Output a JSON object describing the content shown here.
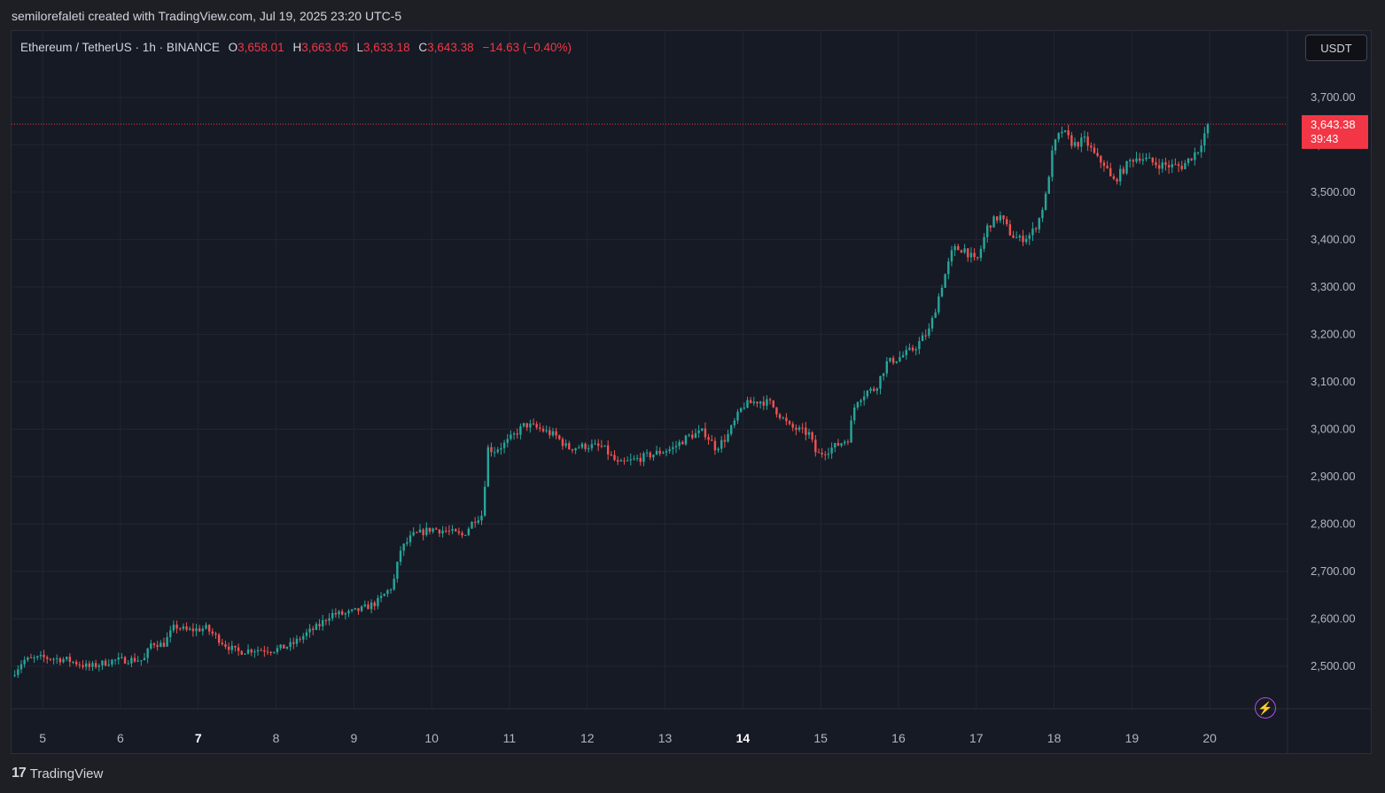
{
  "header": {
    "attribution": "semilorefaleti created with TradingView.com, Jul 19, 2025 23:20 UTC-5"
  },
  "legend": {
    "symbol": "Ethereum / TetherUS · 1h · BINANCE",
    "open_key": "O",
    "open": "3,658.01",
    "high_key": "H",
    "high": "3,663.05",
    "low_key": "L",
    "low": "3,633.18",
    "close_key": "C",
    "close": "3,643.38",
    "change": "−14.63 (−0.40%)"
  },
  "currency_button": {
    "label": "USDT"
  },
  "price_label": {
    "price": "3,643.38",
    "countdown": "39:43"
  },
  "footer": {
    "brand": "TradingView"
  },
  "colors": {
    "up": "#26a69a",
    "down": "#ef5350",
    "grid": "#232632",
    "background": "#161a25",
    "last_price": "#f23645"
  },
  "icons": {
    "logo": "tradingview-logo-icon",
    "alert": "lightning-icon"
  },
  "chart_data": {
    "type": "candlestick",
    "interval": "1h",
    "y_ticks": [
      "2,500.00",
      "2,600.00",
      "2,700.00",
      "2,800.00",
      "2,900.00",
      "3,000.00",
      "3,100.00",
      "3,200.00",
      "3,300.00",
      "3,400.00",
      "3,500.00",
      "3,600.00",
      "3,700.00"
    ],
    "y_tick_values": [
      2500,
      2600,
      2700,
      2800,
      2900,
      3000,
      3100,
      3200,
      3300,
      3400,
      3500,
      3600,
      3700
    ],
    "ylim": [
      2410,
      3840
    ],
    "x_ticks": [
      {
        "label": "5",
        "day": 5,
        "bold": false
      },
      {
        "label": "6",
        "day": 6,
        "bold": false
      },
      {
        "label": "7",
        "day": 7,
        "bold": true
      },
      {
        "label": "8",
        "day": 8,
        "bold": false
      },
      {
        "label": "9",
        "day": 9,
        "bold": false
      },
      {
        "label": "10",
        "day": 10,
        "bold": false
      },
      {
        "label": "11",
        "day": 11,
        "bold": false
      },
      {
        "label": "12",
        "day": 12,
        "bold": false
      },
      {
        "label": "13",
        "day": 13,
        "bold": false
      },
      {
        "label": "14",
        "day": 14,
        "bold": true
      },
      {
        "label": "15",
        "day": 15,
        "bold": false
      },
      {
        "label": "16",
        "day": 16,
        "bold": false
      },
      {
        "label": "17",
        "day": 17,
        "bold": false
      },
      {
        "label": "18",
        "day": 18,
        "bold": false
      },
      {
        "label": "19",
        "day": 19,
        "bold": false
      },
      {
        "label": "20",
        "day": 20,
        "bold": false
      }
    ],
    "xlim_days": [
      4.6,
      21.0
    ],
    "last_price": 3643.38,
    "close_path": [
      [
        4.6,
        2480
      ],
      [
        4.75,
        2512
      ],
      [
        5.0,
        2518
      ],
      [
        5.3,
        2514
      ],
      [
        5.6,
        2498
      ],
      [
        5.9,
        2512
      ],
      [
        6.2,
        2514
      ],
      [
        6.3,
        2512
      ],
      [
        6.4,
        2550
      ],
      [
        6.55,
        2545
      ],
      [
        6.7,
        2585
      ],
      [
        6.85,
        2575
      ],
      [
        7.1,
        2580
      ],
      [
        7.35,
        2545
      ],
      [
        7.5,
        2530
      ],
      [
        7.7,
        2535
      ],
      [
        8.0,
        2535
      ],
      [
        8.2,
        2545
      ],
      [
        8.4,
        2570
      ],
      [
        8.55,
        2585
      ],
      [
        8.7,
        2610
      ],
      [
        8.9,
        2610
      ],
      [
        9.1,
        2620
      ],
      [
        9.3,
        2635
      ],
      [
        9.5,
        2670
      ],
      [
        9.6,
        2745
      ],
      [
        9.75,
        2775
      ],
      [
        10.0,
        2790
      ],
      [
        10.2,
        2785
      ],
      [
        10.4,
        2775
      ],
      [
        10.55,
        2810
      ],
      [
        10.65,
        2820
      ],
      [
        10.72,
        2960
      ],
      [
        10.8,
        2955
      ],
      [
        10.95,
        2970
      ],
      [
        11.2,
        3010
      ],
      [
        11.4,
        3000
      ],
      [
        11.6,
        2985
      ],
      [
        11.75,
        2960
      ],
      [
        12.0,
        2965
      ],
      [
        12.2,
        2962
      ],
      [
        12.4,
        2925
      ],
      [
        12.6,
        2935
      ],
      [
        12.9,
        2950
      ],
      [
        13.1,
        2960
      ],
      [
        13.3,
        2985
      ],
      [
        13.5,
        2995
      ],
      [
        13.65,
        2960
      ],
      [
        13.8,
        2985
      ],
      [
        14.0,
        3050
      ],
      [
        14.2,
        3060
      ],
      [
        14.35,
        3055
      ],
      [
        14.6,
        3005
      ],
      [
        14.85,
        2990
      ],
      [
        14.95,
        2945
      ],
      [
        15.2,
        2965
      ],
      [
        15.35,
        2980
      ],
      [
        15.45,
        3060
      ],
      [
        15.6,
        3080
      ],
      [
        15.7,
        3085
      ],
      [
        15.85,
        3140
      ],
      [
        16.0,
        3150
      ],
      [
        16.2,
        3170
      ],
      [
        16.4,
        3210
      ],
      [
        16.55,
        3300
      ],
      [
        16.7,
        3380
      ],
      [
        16.85,
        3380
      ],
      [
        17.0,
        3350
      ],
      [
        17.15,
        3430
      ],
      [
        17.3,
        3450
      ],
      [
        17.45,
        3410
      ],
      [
        17.55,
        3400
      ],
      [
        17.7,
        3410
      ],
      [
        17.8,
        3440
      ],
      [
        17.9,
        3495
      ],
      [
        17.95,
        3560
      ],
      [
        18.0,
        3600
      ],
      [
        18.1,
        3630
      ],
      [
        18.25,
        3600
      ],
      [
        18.4,
        3610
      ],
      [
        18.55,
        3570
      ],
      [
        18.65,
        3560
      ],
      [
        18.75,
        3520
      ],
      [
        18.85,
        3540
      ],
      [
        19.0,
        3570
      ],
      [
        19.1,
        3575
      ],
      [
        19.3,
        3560
      ],
      [
        19.5,
        3555
      ],
      [
        19.65,
        3555
      ],
      [
        19.85,
        3590
      ],
      [
        19.95,
        3630
      ],
      [
        20.0,
        3643.38
      ]
    ]
  }
}
